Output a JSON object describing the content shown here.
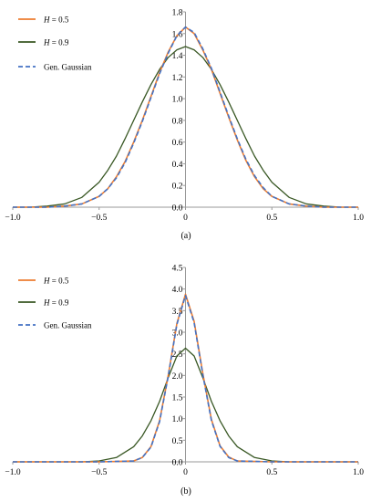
{
  "chart_data": [
    {
      "type": "line",
      "caption": "(a)",
      "xlim": [
        -1.0,
        1.0
      ],
      "ylim": [
        0,
        1.8
      ],
      "xticks": [
        "−1.0",
        "−0.5",
        "0",
        "0.5",
        "1.0"
      ],
      "yticks": [
        "0.0",
        "0.2",
        "0.4",
        "0.6",
        "0.8",
        "1.0",
        "1.2",
        "1.4",
        "1.6",
        "1.8"
      ],
      "legend_position": "top-left",
      "series": [
        {
          "var": "H",
          "eq": " = 0.5",
          "color": "#ED7D31",
          "dash": false,
          "x": [
            -1.0,
            -0.9,
            -0.8,
            -0.7,
            -0.6,
            -0.5,
            -0.45,
            -0.4,
            -0.35,
            -0.3,
            -0.25,
            -0.2,
            -0.15,
            -0.1,
            -0.05,
            0.0,
            0.05,
            0.1,
            0.15,
            0.2,
            0.25,
            0.3,
            0.35,
            0.4,
            0.45,
            0.5,
            0.6,
            0.7,
            0.8,
            0.9,
            1.0
          ],
          "y": [
            0.0,
            0.0,
            0.0,
            0.01,
            0.03,
            0.1,
            0.17,
            0.28,
            0.42,
            0.6,
            0.8,
            1.02,
            1.24,
            1.43,
            1.58,
            1.66,
            1.6,
            1.45,
            1.27,
            1.05,
            0.83,
            0.62,
            0.43,
            0.28,
            0.17,
            0.1,
            0.03,
            0.01,
            0.0,
            0.0,
            0.0
          ]
        },
        {
          "var": "H",
          "eq": " = 0.9",
          "color": "#385723",
          "dash": false,
          "x": [
            -1.0,
            -0.9,
            -0.8,
            -0.7,
            -0.6,
            -0.5,
            -0.45,
            -0.4,
            -0.35,
            -0.3,
            -0.25,
            -0.2,
            -0.15,
            -0.1,
            -0.05,
            0.0,
            0.05,
            0.1,
            0.15,
            0.2,
            0.25,
            0.3,
            0.35,
            0.4,
            0.45,
            0.5,
            0.6,
            0.7,
            0.8,
            0.9,
            1.0
          ],
          "y": [
            0.0,
            0.0,
            0.01,
            0.03,
            0.09,
            0.23,
            0.34,
            0.47,
            0.63,
            0.8,
            0.97,
            1.13,
            1.27,
            1.38,
            1.45,
            1.48,
            1.45,
            1.38,
            1.27,
            1.13,
            0.97,
            0.8,
            0.63,
            0.47,
            0.34,
            0.23,
            0.09,
            0.03,
            0.01,
            0.0,
            0.0
          ]
        },
        {
          "name": "Gen. Gaussian",
          "color": "#4472C4",
          "dash": true,
          "x": [
            -1.0,
            -0.9,
            -0.8,
            -0.7,
            -0.6,
            -0.5,
            -0.45,
            -0.4,
            -0.35,
            -0.3,
            -0.25,
            -0.2,
            -0.15,
            -0.1,
            -0.05,
            0.0,
            0.05,
            0.1,
            0.15,
            0.2,
            0.25,
            0.3,
            0.35,
            0.4,
            0.45,
            0.5,
            0.6,
            0.7,
            0.8,
            0.9,
            1.0
          ],
          "y": [
            0.0,
            0.0,
            0.0,
            0.01,
            0.03,
            0.1,
            0.17,
            0.27,
            0.41,
            0.59,
            0.79,
            1.01,
            1.23,
            1.42,
            1.58,
            1.66,
            1.61,
            1.46,
            1.28,
            1.06,
            0.84,
            0.63,
            0.44,
            0.29,
            0.18,
            0.1,
            0.03,
            0.01,
            0.0,
            0.0,
            0.0
          ]
        }
      ]
    },
    {
      "type": "line",
      "caption": "(b)",
      "xlim": [
        -1.0,
        1.0
      ],
      "ylim": [
        0,
        4.5
      ],
      "xticks": [
        "−1.0",
        "−0.5",
        "0",
        "0.5",
        "1.0"
      ],
      "yticks": [
        "0.0",
        "0.5",
        "1.0",
        "1.5",
        "2.0",
        "2.5",
        "3.0",
        "3.5",
        "4.0",
        "4.5"
      ],
      "legend_position": "top-left",
      "series": [
        {
          "var": "H",
          "eq": " = 0.5",
          "color": "#ED7D31",
          "dash": false,
          "x": [
            -1.0,
            -0.5,
            -0.3,
            -0.25,
            -0.2,
            -0.15,
            -0.1,
            -0.05,
            0.0,
            0.05,
            0.1,
            0.15,
            0.2,
            0.25,
            0.3,
            0.5,
            1.0
          ],
          "y": [
            0.0,
            0.0,
            0.02,
            0.1,
            0.35,
            0.95,
            2.0,
            3.2,
            3.88,
            3.25,
            2.05,
            0.98,
            0.37,
            0.11,
            0.02,
            0.0,
            0.0
          ]
        },
        {
          "var": "H",
          "eq": " = 0.9",
          "color": "#385723",
          "dash": false,
          "x": [
            -1.0,
            -0.6,
            -0.5,
            -0.4,
            -0.3,
            -0.25,
            -0.2,
            -0.15,
            -0.1,
            -0.05,
            0.0,
            0.05,
            0.1,
            0.15,
            0.2,
            0.25,
            0.3,
            0.4,
            0.5,
            0.6,
            1.0
          ],
          "y": [
            0.0,
            0.0,
            0.02,
            0.1,
            0.35,
            0.6,
            0.95,
            1.4,
            1.95,
            2.45,
            2.63,
            2.45,
            1.95,
            1.4,
            0.95,
            0.6,
            0.35,
            0.1,
            0.02,
            0.0,
            0.0
          ]
        },
        {
          "name": "Gen. Gaussian",
          "color": "#4472C4",
          "dash": true,
          "x": [
            -1.0,
            -0.5,
            -0.3,
            -0.25,
            -0.2,
            -0.15,
            -0.1,
            -0.05,
            0.0,
            0.05,
            0.1,
            0.15,
            0.2,
            0.25,
            0.3,
            0.5,
            1.0
          ],
          "y": [
            0.0,
            0.0,
            0.02,
            0.1,
            0.34,
            0.93,
            1.98,
            3.18,
            3.85,
            3.22,
            2.02,
            0.96,
            0.36,
            0.1,
            0.02,
            0.0,
            0.0
          ]
        }
      ]
    }
  ]
}
